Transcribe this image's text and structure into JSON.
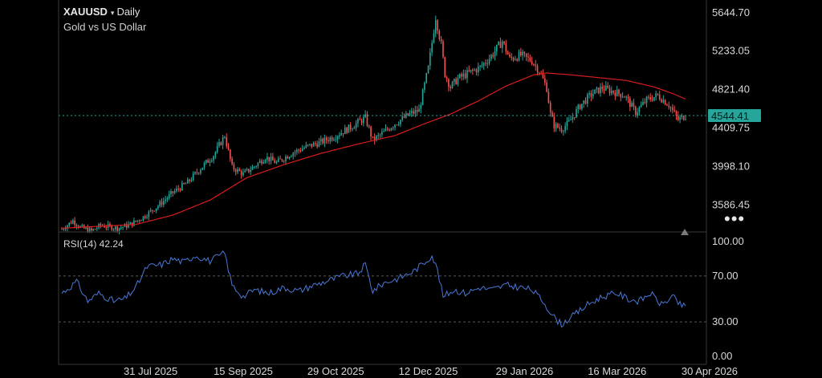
{
  "header": {
    "symbol": "XAUUSD",
    "caret": "▾",
    "timeframe": "Daily",
    "subtitle": "Gold vs US Dollar"
  },
  "rsi": {
    "label": "RSI(14) 42.24",
    "levels": [
      "100.00",
      "70.00",
      "30.00",
      "0.00"
    ],
    "ylim": [
      0,
      100
    ],
    "line_color": "#4a78d8",
    "level_color": "#5a5a5a"
  },
  "more_icon": "•••",
  "colors": {
    "up": "#26a69a",
    "down": "#ef5350",
    "ma": "#d91c1c",
    "last_price_line": "#26a69a",
    "last_price_bg": "#26a69a",
    "axis_text": "#d8d8d8",
    "rsi_line": "#4a78d8"
  },
  "chart_data": [
    {
      "type": "candlestick",
      "ylim": [
        3300,
        5780
      ],
      "yticks": [
        "5644.70",
        "5233.05",
        "4821.40",
        "4409.75",
        "3998.10",
        "3586.45"
      ],
      "xticks": [
        "31 Jul 2025",
        "15 Sep 2025",
        "29 Oct 2025",
        "12 Dec 2025",
        "29 Jan 2026",
        "16 Mar 2026",
        "30 Apr 2026"
      ],
      "last_price": "4544.41",
      "price_path": [
        [
          0,
          3330
        ],
        [
          6,
          3420
        ],
        [
          10,
          3350
        ],
        [
          16,
          3310
        ],
        [
          21,
          3370
        ],
        [
          30,
          3340
        ],
        [
          34,
          3360
        ],
        [
          38,
          3390
        ],
        [
          44,
          3460
        ],
        [
          52,
          3580
        ],
        [
          60,
          3720
        ],
        [
          68,
          3830
        ],
        [
          74,
          3960
        ],
        [
          82,
          4120
        ],
        [
          88,
          4330
        ],
        [
          92,
          3990
        ],
        [
          98,
          3920
        ],
        [
          104,
          4000
        ],
        [
          110,
          4100
        ],
        [
          116,
          4040
        ],
        [
          124,
          4140
        ],
        [
          132,
          4210
        ],
        [
          140,
          4260
        ],
        [
          148,
          4330
        ],
        [
          156,
          4420
        ],
        [
          164,
          4520
        ],
        [
          168,
          4280
        ],
        [
          173,
          4350
        ],
        [
          180,
          4460
        ],
        [
          188,
          4560
        ],
        [
          193,
          4600
        ],
        [
          198,
          5050
        ],
        [
          202,
          5600
        ],
        [
          205,
          5300
        ],
        [
          207,
          4990
        ],
        [
          210,
          4850
        ],
        [
          214,
          4940
        ],
        [
          220,
          5000
        ],
        [
          226,
          5060
        ],
        [
          232,
          5180
        ],
        [
          238,
          5340
        ],
        [
          242,
          5150
        ],
        [
          248,
          5190
        ],
        [
          254,
          5130
        ],
        [
          258,
          5020
        ],
        [
          262,
          4840
        ],
        [
          264,
          4560
        ],
        [
          266,
          4440
        ],
        [
          270,
          4400
        ],
        [
          274,
          4470
        ],
        [
          280,
          4650
        ],
        [
          286,
          4770
        ],
        [
          292,
          4840
        ],
        [
          298,
          4800
        ],
        [
          304,
          4760
        ],
        [
          310,
          4580
        ],
        [
          316,
          4710
        ],
        [
          322,
          4760
        ],
        [
          328,
          4660
        ],
        [
          333,
          4500
        ],
        [
          337,
          4544
        ]
      ],
      "moving_average": [
        [
          0,
          3340
        ],
        [
          40,
          3380
        ],
        [
          60,
          3480
        ],
        [
          80,
          3640
        ],
        [
          100,
          3880
        ],
        [
          120,
          4020
        ],
        [
          140,
          4140
        ],
        [
          160,
          4240
        ],
        [
          180,
          4330
        ],
        [
          195,
          4450
        ],
        [
          210,
          4560
        ],
        [
          225,
          4700
        ],
        [
          240,
          4860
        ],
        [
          255,
          4980
        ],
        [
          262,
          5000
        ],
        [
          275,
          4980
        ],
        [
          290,
          4950
        ],
        [
          305,
          4920
        ],
        [
          320,
          4850
        ],
        [
          330,
          4780
        ],
        [
          337,
          4720
        ]
      ]
    },
    {
      "type": "line",
      "title": "RSI(14) 42.24",
      "ylim": [
        0,
        100
      ],
      "values": [
        [
          0,
          55
        ],
        [
          8,
          65
        ],
        [
          14,
          48
        ],
        [
          20,
          55
        ],
        [
          28,
          48
        ],
        [
          34,
          50
        ],
        [
          40,
          60
        ],
        [
          46,
          78
        ],
        [
          54,
          80
        ],
        [
          60,
          85
        ],
        [
          66,
          82
        ],
        [
          72,
          88
        ],
        [
          80,
          83
        ],
        [
          88,
          90
        ],
        [
          92,
          62
        ],
        [
          98,
          52
        ],
        [
          104,
          58
        ],
        [
          112,
          55
        ],
        [
          120,
          60
        ],
        [
          128,
          57
        ],
        [
          136,
          62
        ],
        [
          144,
          66
        ],
        [
          152,
          70
        ],
        [
          160,
          72
        ],
        [
          164,
          80
        ],
        [
          168,
          57
        ],
        [
          174,
          64
        ],
        [
          182,
          68
        ],
        [
          190,
          74
        ],
        [
          196,
          82
        ],
        [
          200,
          88
        ],
        [
          203,
          75
        ],
        [
          206,
          52
        ],
        [
          212,
          58
        ],
        [
          218,
          55
        ],
        [
          226,
          60
        ],
        [
          232,
          58
        ],
        [
          240,
          62
        ],
        [
          248,
          60
        ],
        [
          254,
          58
        ],
        [
          260,
          48
        ],
        [
          266,
          34
        ],
        [
          270,
          28
        ],
        [
          276,
          35
        ],
        [
          284,
          45
        ],
        [
          292,
          52
        ],
        [
          300,
          55
        ],
        [
          306,
          50
        ],
        [
          312,
          48
        ],
        [
          318,
          55
        ],
        [
          324,
          45
        ],
        [
          330,
          52
        ],
        [
          334,
          45
        ],
        [
          337,
          43
        ]
      ]
    }
  ]
}
